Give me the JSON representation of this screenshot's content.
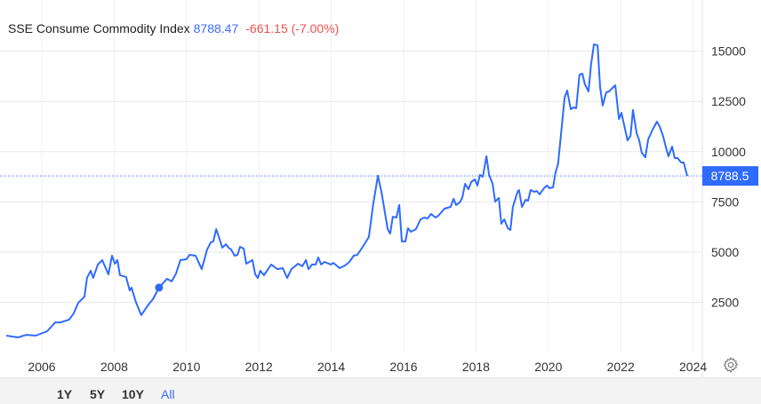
{
  "legend": {
    "name": "SSE Consume Commodity Index",
    "value": "8788.47",
    "change": "-661.15 (-7.00%)"
  },
  "colors": {
    "line": "#2f6bff",
    "value": "#3d6bff",
    "change": "#f0504f",
    "price_label_bg": "#2f6bff"
  },
  "range_buttons": [
    {
      "label": "1Y",
      "active": false
    },
    {
      "label": "5Y",
      "active": false
    },
    {
      "label": "10Y",
      "active": false
    },
    {
      "label": "All",
      "active": true
    }
  ],
  "settings_icon": "gear-icon",
  "chart_data": {
    "type": "line",
    "title": "",
    "xlabel": "",
    "ylabel": "",
    "x_ticks": [
      "2006",
      "2008",
      "2010",
      "2012",
      "2014",
      "2016",
      "2018",
      "2020",
      "2022",
      "2024"
    ],
    "y_ticks": [
      "2500",
      "5000",
      "7500",
      "10000",
      "12500",
      "15000"
    ],
    "y_axis_position": "right",
    "last_price_label": "8788.5",
    "grid": true,
    "highlighted_point": {
      "x": 2009.24,
      "y": 3230
    },
    "series": [
      {
        "x": [
          2005.02,
          2005.34,
          2005.58,
          2005.83,
          2006.15,
          2006.37,
          2006.52,
          2006.76,
          2006.88,
          2007.01,
          2007.18,
          2007.25,
          2007.35,
          2007.42,
          2007.55,
          2007.67,
          2007.84,
          2007.94,
          2008.02,
          2008.09,
          2008.16,
          2008.33,
          2008.43,
          2008.48,
          2008.6,
          2008.75,
          2008.95,
          2009.07,
          2009.24,
          2009.46,
          2009.59,
          2009.71,
          2009.83,
          2010.0,
          2010.08,
          2010.25,
          2010.42,
          2010.57,
          2010.67,
          2010.74,
          2010.82,
          2010.99,
          2011.09,
          2011.16,
          2011.23,
          2011.33,
          2011.41,
          2011.48,
          2011.58,
          2011.65,
          2011.82,
          2011.9,
          2011.97,
          2012.04,
          2012.14,
          2012.34,
          2012.51,
          2012.66,
          2012.78,
          2012.9,
          2013.08,
          2013.2,
          2013.3,
          2013.37,
          2013.47,
          2013.57,
          2013.64,
          2013.72,
          2013.81,
          2013.99,
          2014.06,
          2014.23,
          2014.38,
          2014.5,
          2014.62,
          2014.72,
          2014.87,
          2015.04,
          2015.16,
          2015.29,
          2015.39,
          2015.56,
          2015.63,
          2015.7,
          2015.8,
          2015.88,
          2015.95,
          2016.05,
          2016.12,
          2016.2,
          2016.34,
          2016.47,
          2016.57,
          2016.66,
          2016.76,
          2016.88,
          2016.96,
          2017.13,
          2017.3,
          2017.38,
          2017.45,
          2017.55,
          2017.62,
          2017.7,
          2017.79,
          2017.87,
          2017.97,
          2018.04,
          2018.11,
          2018.19,
          2018.29,
          2018.36,
          2018.46,
          2018.53,
          2018.63,
          2018.7,
          2018.78,
          2018.88,
          2018.95,
          2019.02,
          2019.15,
          2019.19,
          2019.27,
          2019.37,
          2019.44,
          2019.51,
          2019.61,
          2019.68,
          2019.76,
          2019.88,
          2019.96,
          2020.03,
          2020.13,
          2020.2,
          2020.27,
          2020.45,
          2020.52,
          2020.62,
          2020.69,
          2020.77,
          2020.86,
          2020.94,
          2021.01,
          2021.11,
          2021.18,
          2021.26,
          2021.36,
          2021.43,
          2021.5,
          2021.6,
          2021.68,
          2021.75,
          2021.85,
          2021.95,
          2022.02,
          2022.19,
          2022.27,
          2022.34,
          2022.44,
          2022.51,
          2022.58,
          2022.68,
          2022.76,
          2022.88,
          2023.0,
          2023.08,
          2023.17,
          2023.25,
          2023.32,
          2023.42,
          2023.49,
          2023.57,
          2023.67,
          2023.74,
          2023.84
        ],
        "y": [
          840,
          750,
          880,
          840,
          1060,
          1500,
          1500,
          1640,
          1940,
          2480,
          2780,
          3720,
          4070,
          3710,
          4380,
          4600,
          3890,
          4820,
          4420,
          4600,
          3850,
          3760,
          3090,
          3230,
          2520,
          1860,
          2390,
          2650,
          3230,
          3670,
          3540,
          3930,
          4600,
          4640,
          4860,
          4820,
          4150,
          5130,
          5480,
          5530,
          6140,
          5220,
          5390,
          5220,
          5130,
          4820,
          4860,
          5260,
          5170,
          4420,
          4600,
          3890,
          3710,
          4070,
          3850,
          4380,
          4150,
          4200,
          3710,
          4150,
          4420,
          4290,
          4600,
          4150,
          4380,
          4380,
          4730,
          4380,
          4510,
          4380,
          4460,
          4200,
          4330,
          4510,
          4820,
          4860,
          5260,
          5750,
          7380,
          8800,
          7960,
          6140,
          5920,
          6760,
          6720,
          7340,
          5530,
          5530,
          6190,
          6010,
          6140,
          6630,
          6720,
          6670,
          6900,
          6720,
          6810,
          7160,
          7250,
          7650,
          7340,
          7470,
          7690,
          8400,
          8130,
          8490,
          8620,
          8310,
          8840,
          8750,
          9770,
          8840,
          8400,
          7510,
          7690,
          6410,
          6630,
          6190,
          6100,
          7250,
          8000,
          8090,
          7250,
          7600,
          7560,
          8090,
          8000,
          8040,
          7870,
          8180,
          8310,
          8180,
          8220,
          8970,
          9410,
          12690,
          13040,
          12110,
          12200,
          12160,
          13830,
          13880,
          13350,
          13000,
          14320,
          15340,
          15290,
          13220,
          12290,
          12950,
          13000,
          13130,
          13300,
          11620,
          11930,
          10560,
          10780,
          12070,
          10920,
          10560,
          9950,
          9720,
          10610,
          11090,
          11490,
          11230,
          10780,
          10210,
          9770,
          10250,
          9680,
          9680,
          9460,
          9460,
          8788.47
        ]
      }
    ]
  }
}
